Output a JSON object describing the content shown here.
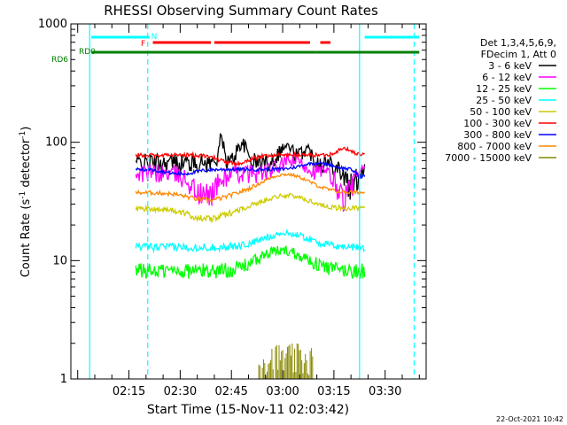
{
  "chart_data": {
    "type": "line",
    "title": "RHESSI Observing Summary Count Rates",
    "xlabel": "Start Time (15-Nov-11 02:03:42)",
    "ylabel_main": "Count Rate (s",
    "ylabel_sup1": "-1",
    "ylabel_mid": " detector",
    "ylabel_sup2": "-1",
    "ylabel_end": ")",
    "yscale": "log",
    "ylim": [
      1,
      1000
    ],
    "y_ticks": [
      {
        "value": 1,
        "label": "1"
      },
      {
        "value": 10,
        "label": "10"
      },
      {
        "value": 100,
        "label": "100"
      },
      {
        "value": 1000,
        "label": "1000"
      }
    ],
    "xlim_min": [
      4,
      42
    ],
    "x_ticks": [
      {
        "value": 15,
        "label": "02:15"
      },
      {
        "value": 30,
        "label": "02:30"
      },
      {
        "value": 45,
        "label": "02:45"
      },
      {
        "value": 60,
        "label": "03:00"
      },
      {
        "value": 75,
        "label": "03:15"
      },
      {
        "value": 90,
        "label": "03:30"
      }
    ],
    "legend_header": [
      "Det 1,3,4,5,6,9,",
      "FDecim 1, Att 0"
    ],
    "legend_position": "right",
    "series": [
      {
        "name": "3 - 6 keV",
        "color": "#000000"
      },
      {
        "name": "6 - 12 keV",
        "color": "#ff00ff"
      },
      {
        "name": "12 - 25 keV",
        "color": "#00ff00"
      },
      {
        "name": "25 - 50 keV",
        "color": "#00ffff"
      },
      {
        "name": "50 - 100 keV",
        "color": "#cccc00"
      },
      {
        "name": "100 - 300 keV",
        "color": "#ff0000"
      },
      {
        "name": "300 - 800 keV",
        "color": "#0000ff"
      },
      {
        "name": "800 - 7000 keV",
        "color": "#ff8800"
      },
      {
        "name": "7000 - 15000 keV",
        "color": "#888800"
      }
    ],
    "flag_bars": [
      {
        "label": "N",
        "color": "#00ffff",
        "segments": [
          [
            4,
            21
          ],
          [
            84,
            100
          ]
        ]
      },
      {
        "label": "F",
        "color": "#ff0000",
        "segments": [
          [
            22,
            39
          ],
          [
            40,
            68
          ],
          [
            71,
            74
          ]
        ]
      },
      {
        "label": "RD6",
        "color": "#008000",
        "segments": [
          [
            4,
            8
          ],
          [
            8,
            57
          ],
          [
            57,
            70
          ],
          [
            70,
            100
          ]
        ]
      }
    ],
    "flag_label_rd0": "RD0",
    "vertical_lines": [
      {
        "x": 3.5,
        "color": "#00ffff",
        "style": "solid"
      },
      {
        "x": 20.5,
        "color": "#00ffff",
        "style": "dashed"
      },
      {
        "x": 82.5,
        "color": "#00ffff",
        "style": "solid"
      },
      {
        "x": 98.5,
        "color": "#00ffff",
        "style": "dashed"
      }
    ],
    "data_start_min": 17,
    "data_end_min": 84,
    "footer_date": "22-Oct-2021 10:42"
  }
}
